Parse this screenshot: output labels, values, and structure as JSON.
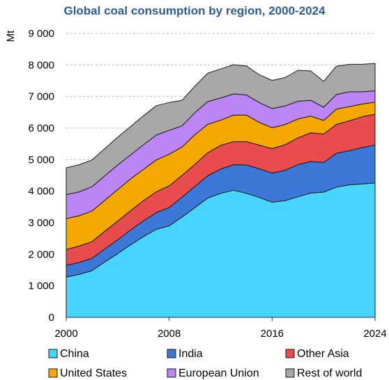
{
  "chart_data": {
    "type": "area",
    "title": "Global coal consumption by region, 2000-2024",
    "ylabel": "Mt",
    "xlabel": "",
    "stacked": true,
    "ylim": [
      0,
      9000
    ],
    "xlim": [
      2000,
      2024
    ],
    "yticks": [
      0,
      1000,
      2000,
      3000,
      4000,
      5000,
      6000,
      7000,
      8000,
      9000
    ],
    "ytick_labels": [
      "0",
      "1 000",
      "2 000",
      "3 000",
      "4 000",
      "5 000",
      "6 000",
      "7 000",
      "8 000",
      "9 000"
    ],
    "xticks": [
      2000,
      2008,
      2016,
      2024
    ],
    "xtick_labels": [
      "2000",
      "2008",
      "2016",
      "2024"
    ],
    "grid": "horizontal dashed",
    "legend_position": "bottom",
    "x": [
      2000,
      2001,
      2002,
      2003,
      2004,
      2005,
      2006,
      2007,
      2008,
      2009,
      2010,
      2011,
      2012,
      2013,
      2014,
      2015,
      2016,
      2017,
      2018,
      2019,
      2020,
      2021,
      2022,
      2023,
      2024
    ],
    "series": [
      {
        "name": "China",
        "color": "#47d4ff",
        "values": [
          1280,
          1360,
          1480,
          1760,
          2020,
          2300,
          2560,
          2790,
          2900,
          3180,
          3480,
          3780,
          3930,
          4030,
          3930,
          3800,
          3650,
          3700,
          3820,
          3940,
          3970,
          4130,
          4200,
          4230,
          4260
        ]
      },
      {
        "name": "India",
        "color": "#3b78d8",
        "values": [
          370,
          380,
          390,
          410,
          440,
          470,
          500,
          530,
          580,
          630,
          670,
          710,
          770,
          810,
          900,
          910,
          920,
          960,
          1020,
          1000,
          940,
          1070,
          1080,
          1150,
          1200
        ]
      },
      {
        "name": "Other Asia",
        "color": "#e84c4c",
        "values": [
          500,
          520,
          530,
          560,
          590,
          610,
          640,
          660,
          690,
          690,
          700,
          730,
          750,
          730,
          740,
          750,
          780,
          810,
          850,
          910,
          900,
          920,
          950,
          980,
          980
        ]
      },
      {
        "name": "United States",
        "color": "#f5a800",
        "values": [
          980,
          960,
          970,
          980,
          1000,
          1010,
          990,
          1010,
          1000,
          900,
          940,
          900,
          800,
          840,
          840,
          720,
          660,
          640,
          600,
          530,
          430,
          480,
          450,
          400,
          380
        ]
      },
      {
        "name": "European Union",
        "color": "#bb85f5",
        "values": [
          760,
          760,
          770,
          780,
          780,
          760,
          780,
          790,
          760,
          670,
          700,
          720,
          700,
          670,
          640,
          630,
          610,
          590,
          560,
          500,
          420,
          460,
          470,
          390,
          360
        ]
      },
      {
        "name": "Rest of world",
        "color": "#a8a8a8",
        "values": [
          850,
          860,
          850,
          860,
          880,
          900,
          920,
          930,
          880,
          810,
          840,
          900,
          920,
          930,
          920,
          880,
          890,
          900,
          980,
          930,
          820,
          900,
          870,
          870,
          870
        ]
      }
    ]
  }
}
